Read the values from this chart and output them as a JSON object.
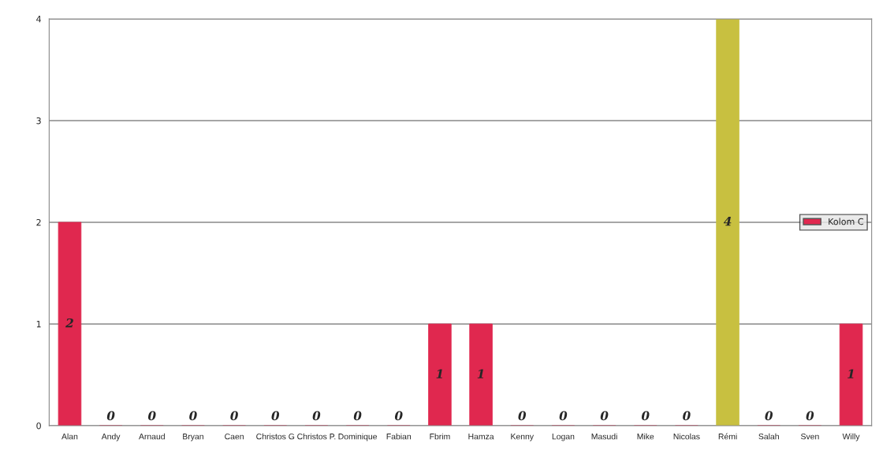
{
  "chart_data": {
    "type": "bar",
    "categories": [
      "Alan",
      "Andy",
      "Arnaud",
      "Bryan",
      "Caen",
      "Christos G",
      "Christos P.",
      "Dominique",
      "Fabian",
      "Fbrim",
      "Hamza",
      "Kenny",
      "Logan",
      "Masudi",
      "Mike",
      "Nicolas",
      "Rémi",
      "Salah",
      "Sven",
      "Willy"
    ],
    "series": [
      {
        "name": "Kolom C",
        "color": "#e0284f",
        "values": [
          2,
          0,
          0,
          0,
          0,
          0,
          0,
          0,
          0,
          1,
          1,
          0,
          0,
          0,
          0,
          0,
          4,
          0,
          0,
          1
        ],
        "colors": [
          "#e0284f",
          "#e0284f",
          "#e0284f",
          "#e0284f",
          "#e0284f",
          "#e0284f",
          "#e0284f",
          "#e0284f",
          "#e0284f",
          "#e0284f",
          "#e0284f",
          "#e0284f",
          "#e0284f",
          "#e0284f",
          "#e0284f",
          "#e0284f",
          "#c8c040",
          "#e0284f",
          "#e0284f",
          "#e0284f"
        ]
      }
    ],
    "ylim": [
      0,
      4
    ],
    "yticks": [
      0,
      1,
      2,
      3,
      4
    ],
    "grid": "y",
    "legend": "right",
    "data_labels": true
  }
}
